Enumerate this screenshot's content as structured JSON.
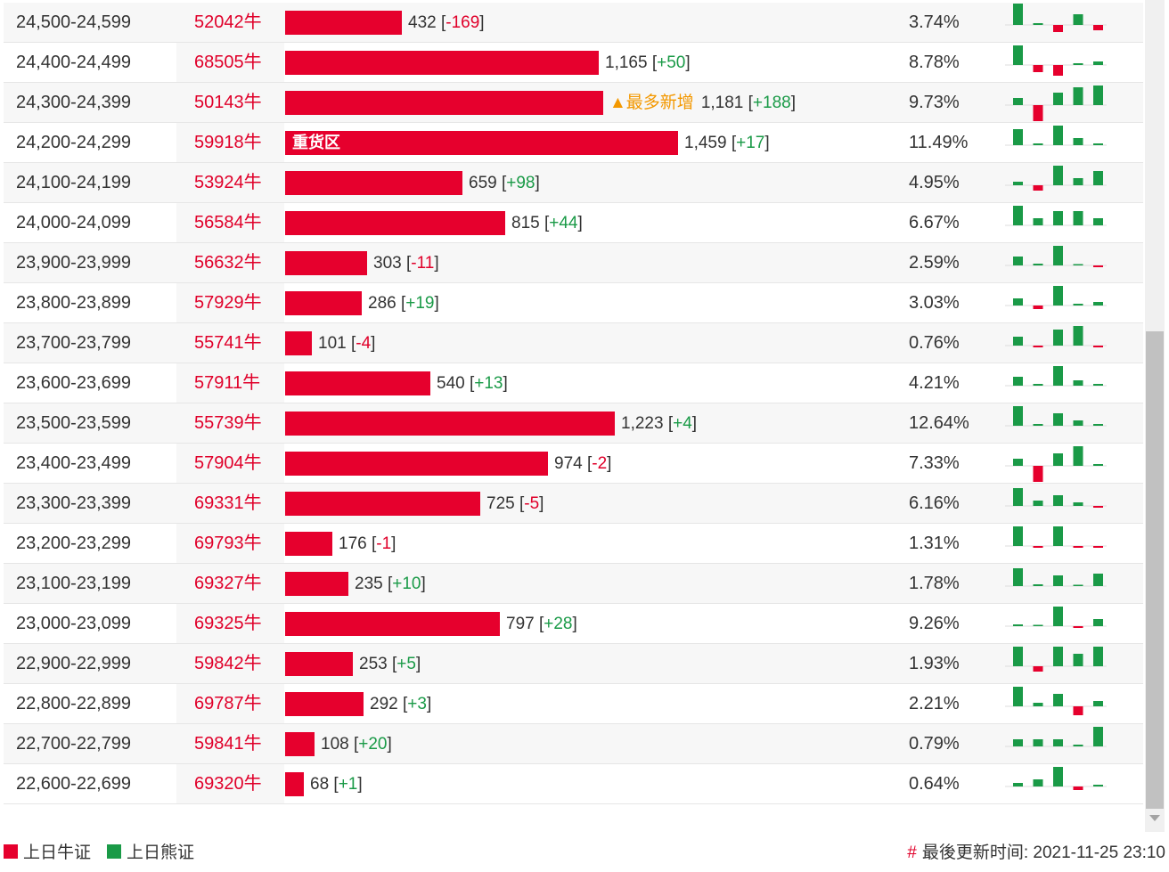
{
  "colors": {
    "bull": "#e6002d",
    "bear": "#1a9a47",
    "accent": "#f39800"
  },
  "rows": [
    {
      "range": "24,500-24,599",
      "code": "52042牛",
      "qty": "432",
      "delta": "-169",
      "sign": "neg",
      "pct": "3.74%",
      "frac": 0.296,
      "mini": [
        24,
        2,
        -8,
        12,
        -6
      ]
    },
    {
      "range": "24,400-24,499",
      "code": "68505牛",
      "qty": "1,165",
      "delta": "+50",
      "sign": "pos",
      "pct": "8.78%",
      "frac": 0.798,
      "mini": [
        22,
        -8,
        -12,
        2,
        4
      ]
    },
    {
      "range": "24,300-24,399",
      "code": "50143牛",
      "qty": "1,181",
      "delta": "+188",
      "sign": "pos",
      "pct": "9.73%",
      "frac": 0.809,
      "note": "▲最多新增",
      "mini": [
        8,
        -18,
        14,
        20,
        22
      ]
    },
    {
      "range": "24,200-24,299",
      "code": "59918牛",
      "qty": "1,459",
      "delta": "+17",
      "sign": "pos",
      "pct": "11.49%",
      "frac": 1.0,
      "label": "重货区",
      "mini": [
        18,
        2,
        22,
        8,
        2
      ]
    },
    {
      "range": "24,100-24,199",
      "code": "53924牛",
      "qty": "659",
      "delta": "+98",
      "sign": "pos",
      "pct": "4.95%",
      "frac": 0.452,
      "mini": [
        4,
        -6,
        22,
        8,
        16
      ]
    },
    {
      "range": "24,000-24,099",
      "code": "56584牛",
      "qty": "815",
      "delta": "+44",
      "sign": "pos",
      "pct": "6.67%",
      "frac": 0.559,
      "mini": [
        22,
        8,
        16,
        16,
        8
      ]
    },
    {
      "range": "23,900-23,999",
      "code": "56632牛",
      "qty": "303",
      "delta": "-11",
      "sign": "neg",
      "pct": "2.59%",
      "frac": 0.208,
      "mini": [
        10,
        2,
        22,
        1,
        -2
      ]
    },
    {
      "range": "23,800-23,899",
      "code": "57929牛",
      "qty": "286",
      "delta": "+19",
      "sign": "pos",
      "pct": "3.03%",
      "frac": 0.196,
      "mini": [
        8,
        -4,
        22,
        2,
        4
      ]
    },
    {
      "range": "23,700-23,799",
      "code": "55741牛",
      "qty": "101",
      "delta": "-4",
      "sign": "neg",
      "pct": "0.76%",
      "frac": 0.069,
      "mini": [
        10,
        -2,
        18,
        22,
        -2
      ]
    },
    {
      "range": "23,600-23,699",
      "code": "57911牛",
      "qty": "540",
      "delta": "+13",
      "sign": "pos",
      "pct": "4.21%",
      "frac": 0.37,
      "mini": [
        10,
        2,
        22,
        6,
        2
      ]
    },
    {
      "range": "23,500-23,599",
      "code": "55739牛",
      "qty": "1,223",
      "delta": "+4",
      "sign": "pos",
      "pct": "12.64%",
      "frac": 0.838,
      "mini": [
        22,
        2,
        14,
        6,
        2
      ]
    },
    {
      "range": "23,400-23,499",
      "code": "57904牛",
      "qty": "974",
      "delta": "-2",
      "sign": "neg",
      "pct": "7.33%",
      "frac": 0.668,
      "mini": [
        8,
        -18,
        14,
        22,
        2
      ]
    },
    {
      "range": "23,300-23,399",
      "code": "69331牛",
      "qty": "725",
      "delta": "-5",
      "sign": "neg",
      "pct": "6.16%",
      "frac": 0.497,
      "mini": [
        20,
        6,
        12,
        4,
        -2
      ]
    },
    {
      "range": "23,200-23,299",
      "code": "69793牛",
      "qty": "176",
      "delta": "-1",
      "sign": "neg",
      "pct": "1.31%",
      "frac": 0.121,
      "mini": [
        22,
        -2,
        22,
        -2,
        -2
      ]
    },
    {
      "range": "23,100-23,199",
      "code": "69327牛",
      "qty": "235",
      "delta": "+10",
      "sign": "pos",
      "pct": "1.78%",
      "frac": 0.161,
      "mini": [
        20,
        2,
        12,
        0,
        14
      ]
    },
    {
      "range": "23,000-23,099",
      "code": "69325牛",
      "qty": "797",
      "delta": "+28",
      "sign": "pos",
      "pct": "9.26%",
      "frac": 0.546,
      "mini": [
        2,
        0,
        22,
        -2,
        8
      ]
    },
    {
      "range": "22,900-22,999",
      "code": "59842牛",
      "qty": "253",
      "delta": "+5",
      "sign": "pos",
      "pct": "1.93%",
      "frac": 0.173,
      "mini": [
        22,
        -6,
        22,
        14,
        22
      ]
    },
    {
      "range": "22,800-22,899",
      "code": "69787牛",
      "qty": "292",
      "delta": "+3",
      "sign": "pos",
      "pct": "2.21%",
      "frac": 0.2,
      "mini": [
        22,
        4,
        14,
        -10,
        6
      ]
    },
    {
      "range": "22,700-22,799",
      "code": "59841牛",
      "qty": "108",
      "delta": "+20",
      "sign": "pos",
      "pct": "0.79%",
      "frac": 0.074,
      "mini": [
        8,
        8,
        8,
        2,
        22
      ]
    },
    {
      "range": "22,600-22,699",
      "code": "69320牛",
      "qty": "68",
      "delta": "+1",
      "sign": "pos",
      "pct": "0.64%",
      "frac": 0.047,
      "mini": [
        4,
        8,
        22,
        -4,
        2
      ]
    }
  ],
  "legend": {
    "bull_label": "上日牛证",
    "bear_label": "上日熊证"
  },
  "footer": {
    "hash": "#",
    "updated_text": "最後更新时间: 2021-11-25 23:10"
  }
}
